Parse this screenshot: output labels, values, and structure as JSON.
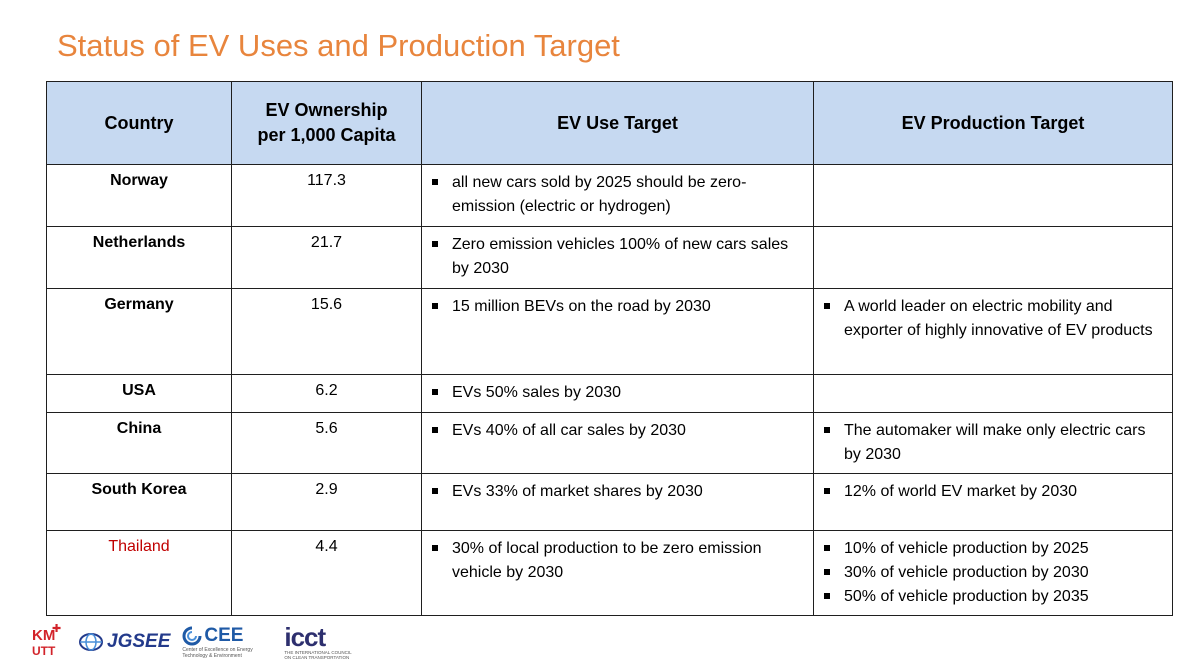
{
  "title": "Status of EV Uses and Production Target",
  "table": {
    "headers": [
      "Country",
      "EV Ownership per 1,000 Capita",
      "EV Use Target",
      "EV Production Target"
    ],
    "rows": [
      {
        "country": "Norway",
        "ownership": "117.3",
        "use": [
          "all new cars sold by 2025 should be zero-emission (electric or hydrogen)"
        ],
        "production": []
      },
      {
        "country": "Netherlands",
        "ownership": "21.7",
        "use": [
          "Zero emission vehicles  100% of new cars sales by 2030"
        ],
        "production": []
      },
      {
        "country": "Germany",
        "ownership": "15.6",
        "use": [
          "15 million BEVs on the road by 2030"
        ],
        "production": [
          "A world leader on electric mobility and exporter of highly innovative of EV products"
        ]
      },
      {
        "country": "USA",
        "ownership": "6.2",
        "use": [
          "EVs 50% sales by 2030"
        ],
        "production": []
      },
      {
        "country": "China",
        "ownership": "5.6",
        "use": [
          "EVs 40% of all car sales by 2030"
        ],
        "production": [
          "The automaker will make only electric cars by 2030"
        ]
      },
      {
        "country": "South Korea",
        "ownership": "2.9",
        "use": [
          "EVs 33% of market shares by 2030"
        ],
        "production": [
          "12% of world EV market by 2030"
        ]
      },
      {
        "country": "Thailand",
        "ownership": "4.4",
        "use": [
          "30% of local production to be zero emission vehicle by 2030"
        ],
        "production": [
          "10% of vehicle production by 2025",
          "30% of vehicle production by 2030",
          "50% of vehicle production by 2035"
        ]
      }
    ]
  },
  "colors": {
    "title": "#e8853d",
    "header_bg": "#c6d9f1",
    "highlight_country": "#c00000"
  },
  "logos": {
    "kmutt_top": "KM",
    "kmutt_bottom": "UTT",
    "jgsee": "JGSEE",
    "cee": "CEE",
    "cee_sub": "Center of Excellence on Energy Technology & Environment",
    "icct_main": "icct",
    "icct_sub": "THE INTERNATIONAL COUNCIL ON CLEAN TRANSPORTATION"
  }
}
